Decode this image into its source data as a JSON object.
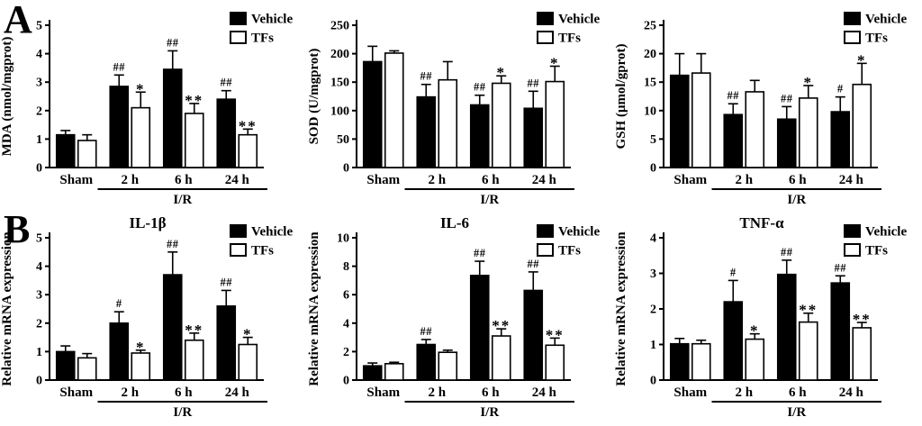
{
  "figure": {
    "background": "#ffffff",
    "foreground": "#000000",
    "panels": [
      {
        "label": "A"
      },
      {
        "label": "B"
      }
    ]
  },
  "chart_data": [
    {
      "id": "mda",
      "type": "bar",
      "panel": "A",
      "title": "",
      "ylabel": "MDA (nmol/mgprot)",
      "ylim": [
        0,
        5
      ],
      "yticks": [
        0,
        1,
        2,
        3,
        4,
        5
      ],
      "categories": [
        "Sham",
        "2 h",
        "6 h",
        "24 h"
      ],
      "group_label": "I/R",
      "group_span": [
        1,
        3
      ],
      "legend_position": "top-right",
      "grid": false,
      "series": [
        {
          "name": "Vehicle",
          "fill": "#000000",
          "values": [
            1.15,
            2.85,
            3.45,
            2.4
          ],
          "errors": [
            0.15,
            0.4,
            0.65,
            0.3
          ],
          "annotations": [
            "",
            "##",
            "##",
            "##"
          ]
        },
        {
          "name": "TFs",
          "fill": "#ffffff",
          "values": [
            0.95,
            2.1,
            1.9,
            1.15
          ],
          "errors": [
            0.2,
            0.55,
            0.35,
            0.2
          ],
          "annotations": [
            "",
            "*",
            "**",
            "**"
          ]
        }
      ]
    },
    {
      "id": "sod",
      "type": "bar",
      "panel": "A",
      "title": "",
      "ylabel": "SOD (U/mgprot)",
      "ylim": [
        0,
        250
      ],
      "yticks": [
        0,
        50,
        100,
        150,
        200,
        250
      ],
      "categories": [
        "Sham",
        "2 h",
        "6 h",
        "24 h"
      ],
      "group_label": "I/R",
      "group_span": [
        1,
        3
      ],
      "legend_position": "top-right",
      "grid": false,
      "series": [
        {
          "name": "Vehicle",
          "fill": "#000000",
          "values": [
            186,
            124,
            110,
            104
          ],
          "errors": [
            27,
            22,
            17,
            30
          ],
          "annotations": [
            "",
            "##",
            "##",
            "##"
          ]
        },
        {
          "name": "TFs",
          "fill": "#ffffff",
          "values": [
            201,
            154,
            148,
            151
          ],
          "errors": [
            4,
            32,
            13,
            27
          ],
          "annotations": [
            "",
            "",
            "*",
            "*"
          ]
        }
      ]
    },
    {
      "id": "gsh",
      "type": "bar",
      "panel": "A",
      "title": "",
      "ylabel": "GSH (μmol/gprot)",
      "ylim": [
        0,
        25
      ],
      "yticks": [
        0,
        5,
        10,
        15,
        20,
        25
      ],
      "categories": [
        "Sham",
        "2 h",
        "6 h",
        "24 h"
      ],
      "group_label": "I/R",
      "group_span": [
        1,
        3
      ],
      "legend_position": "top-right",
      "grid": false,
      "series": [
        {
          "name": "Vehicle",
          "fill": "#000000",
          "values": [
            16.2,
            9.3,
            8.5,
            9.8
          ],
          "errors": [
            3.8,
            1.9,
            2.2,
            2.6
          ],
          "annotations": [
            "",
            "##",
            "##",
            "#"
          ]
        },
        {
          "name": "TFs",
          "fill": "#ffffff",
          "values": [
            16.6,
            13.3,
            12.2,
            14.6
          ],
          "errors": [
            3.4,
            2.0,
            2.2,
            3.7
          ],
          "annotations": [
            "",
            "",
            "*",
            "*"
          ]
        }
      ]
    },
    {
      "id": "il1b",
      "type": "bar",
      "panel": "B",
      "title": "IL-1β",
      "ylabel": "Relative mRNA expression",
      "ylim": [
        0,
        5
      ],
      "yticks": [
        0,
        1,
        2,
        3,
        4,
        5
      ],
      "categories": [
        "Sham",
        "2 h",
        "6 h",
        "24 h"
      ],
      "group_label": "I/R",
      "group_span": [
        1,
        3
      ],
      "legend_position": "top-right",
      "grid": false,
      "series": [
        {
          "name": "Vehicle",
          "fill": "#000000",
          "values": [
            1.0,
            2.0,
            3.7,
            2.6
          ],
          "errors": [
            0.2,
            0.4,
            0.8,
            0.55
          ],
          "annotations": [
            "",
            "#",
            "##",
            "##"
          ]
        },
        {
          "name": "TFs",
          "fill": "#ffffff",
          "values": [
            0.78,
            0.95,
            1.4,
            1.25
          ],
          "errors": [
            0.15,
            0.1,
            0.25,
            0.25
          ],
          "annotations": [
            "",
            "*",
            "**",
            "*"
          ]
        }
      ]
    },
    {
      "id": "il6",
      "type": "bar",
      "panel": "B",
      "title": "IL-6",
      "ylabel": "Relative mRNA expression",
      "ylim": [
        0,
        10
      ],
      "yticks": [
        0,
        2,
        4,
        6,
        8,
        10
      ],
      "categories": [
        "Sham",
        "2 h",
        "6 h",
        "24 h"
      ],
      "group_label": "I/R",
      "group_span": [
        1,
        3
      ],
      "legend_position": "top-right",
      "grid": false,
      "series": [
        {
          "name": "Vehicle",
          "fill": "#000000",
          "values": [
            1.0,
            2.5,
            7.35,
            6.3
          ],
          "errors": [
            0.2,
            0.35,
            1.0,
            1.3
          ],
          "annotations": [
            "",
            "##",
            "##",
            "##"
          ]
        },
        {
          "name": "TFs",
          "fill": "#ffffff",
          "values": [
            1.15,
            1.95,
            3.1,
            2.45
          ],
          "errors": [
            0.1,
            0.15,
            0.5,
            0.5
          ],
          "annotations": [
            "",
            "",
            "**",
            "**"
          ]
        }
      ]
    },
    {
      "id": "tnfa",
      "type": "bar",
      "panel": "B",
      "title": "TNF-α",
      "ylabel": "Relative mRNA expression",
      "ylim": [
        0,
        4
      ],
      "yticks": [
        0,
        1,
        2,
        3,
        4
      ],
      "categories": [
        "Sham",
        "2 h",
        "6 h",
        "24 h"
      ],
      "group_label": "I/R",
      "group_span": [
        1,
        3
      ],
      "legend_position": "top-right",
      "grid": false,
      "series": [
        {
          "name": "Vehicle",
          "fill": "#000000",
          "values": [
            1.02,
            2.2,
            2.97,
            2.73
          ],
          "errors": [
            0.15,
            0.6,
            0.4,
            0.2
          ],
          "annotations": [
            "",
            "#",
            "##",
            "##"
          ]
        },
        {
          "name": "TFs",
          "fill": "#ffffff",
          "values": [
            1.02,
            1.15,
            1.63,
            1.47
          ],
          "errors": [
            0.1,
            0.15,
            0.25,
            0.15
          ],
          "annotations": [
            "",
            "*",
            "**",
            "**"
          ]
        }
      ]
    }
  ]
}
